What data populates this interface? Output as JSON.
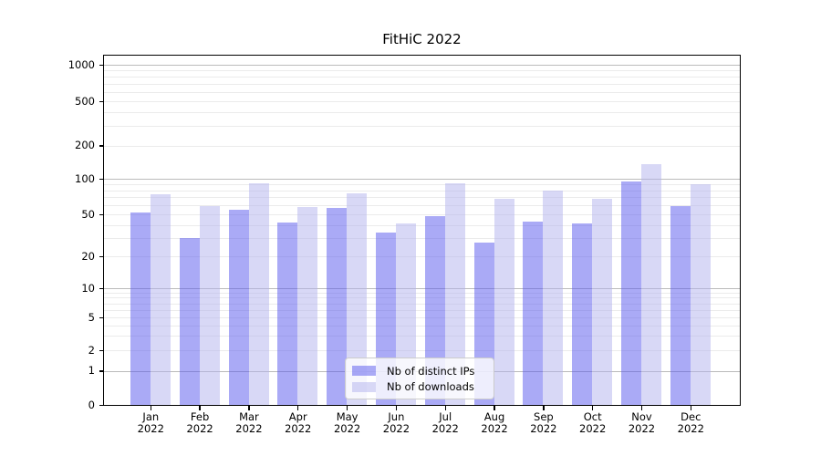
{
  "title": "FitHiC 2022",
  "chart_data": {
    "type": "bar",
    "title": "FitHiC 2022",
    "yscale": "symlog",
    "grid": true,
    "legend_position": "lower center",
    "ylim": [
      0,
      1400
    ],
    "yticks": [
      0,
      1,
      2,
      5,
      10,
      20,
      50,
      100,
      200,
      500,
      1000
    ],
    "categories": [
      "Jan",
      "Feb",
      "Mar",
      "Apr",
      "May",
      "Jun",
      "Jul",
      "Aug",
      "Sep",
      "Oct",
      "Nov",
      "Dec"
    ],
    "year_label": "2022",
    "series": [
      {
        "name": "Nb of distinct IPs",
        "color": "rgba(85,85,238,0.5)",
        "values": [
          53,
          31,
          56,
          43,
          58,
          35,
          50,
          28,
          44,
          42,
          97,
          61
        ]
      },
      {
        "name": "Nb of downloads",
        "color": "rgba(177,177,237,0.5)",
        "values": [
          76,
          61,
          95,
          59,
          77,
          42,
          95,
          70,
          82,
          70,
          140,
          93
        ]
      }
    ]
  },
  "colors": {
    "major_grid": "#bbbbbb",
    "minor_grid": "#ebebeb",
    "axis": "#000000",
    "background": "#ffffff"
  },
  "legend": {
    "items": [
      {
        "label": "Nb of distinct IPs"
      },
      {
        "label": "Nb of downloads"
      }
    ]
  }
}
